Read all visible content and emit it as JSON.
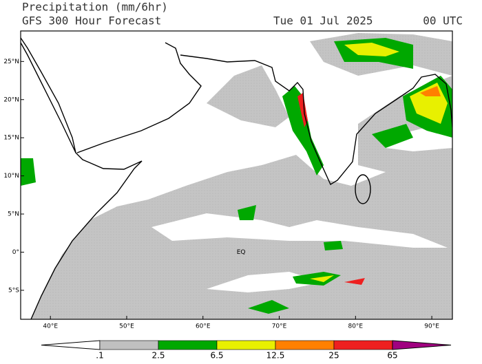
{
  "header": {
    "title": "Precipitation (mm/6hr)",
    "subtitle": "GFS 300 Hour Forecast",
    "date": "Tue 01 Jul 2025",
    "time": "00 UTC"
  },
  "map": {
    "xlim": [
      36.1,
      92.7
    ],
    "ylim": [
      -8.8,
      29
    ],
    "xticks": [
      {
        "value": 40,
        "label": "40°E"
      },
      {
        "value": 50,
        "label": "50°E"
      },
      {
        "value": 60,
        "label": "60°E"
      },
      {
        "value": 70,
        "label": "70°E"
      },
      {
        "value": 80,
        "label": "80°E"
      },
      {
        "value": 90,
        "label": "90°E"
      }
    ],
    "yticks": [
      {
        "value": 25,
        "label": "25°N"
      },
      {
        "value": 20,
        "label": "20°N"
      },
      {
        "value": 15,
        "label": "15°N"
      },
      {
        "value": 10,
        "label": "10°N"
      },
      {
        "value": 5,
        "label": "5°N"
      },
      {
        "value": 0,
        "label": "0°"
      },
      {
        "value": -5,
        "label": "5°S"
      }
    ],
    "equator_label": "EQ"
  },
  "colorbar": {
    "levels": [
      {
        "value": 0.1,
        "label": ".1"
      },
      {
        "value": 2.5,
        "label": "2.5"
      },
      {
        "value": 6.5,
        "label": "6.5"
      },
      {
        "value": 12.5,
        "label": "12.5"
      },
      {
        "value": 25,
        "label": "25"
      },
      {
        "value": 65,
        "label": "65"
      }
    ],
    "colors": [
      "#ffffff",
      "#c0c0c0",
      "#00a800",
      "#e8f000",
      "#ff8000",
      "#ee2020",
      "#a00080"
    ]
  }
}
